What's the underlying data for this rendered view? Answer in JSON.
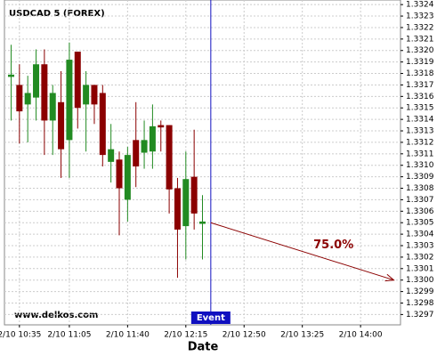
{
  "chart_data": {
    "type": "candlestick",
    "title": "USDCAD 5 (FOREX)",
    "x_label": "Date",
    "watermark": "www.delkos.com",
    "x": [
      "2/10 10:30",
      "2/10 10:35",
      "2/10 10:40",
      "2/10 10:45",
      "2/10 10:50",
      "2/10 10:55",
      "2/10 11:00",
      "2/10 11:05",
      "2/10 11:10",
      "2/10 11:15",
      "2/10 11:20",
      "2/10 11:25",
      "2/10 11:30",
      "2/10 11:35",
      "2/10 11:40",
      "2/10 11:45",
      "2/10 11:50",
      "2/10 11:55",
      "2/10 12:00",
      "2/10 12:05",
      "2/10 12:10",
      "2/10 12:15",
      "2/10 12:20",
      "2/10 12:25"
    ],
    "open": [
      1.33177,
      1.3317,
      1.33153,
      1.33159,
      1.33188,
      1.33139,
      1.33155,
      1.33122,
      1.33199,
      1.33153,
      1.3317,
      1.33163,
      1.33103,
      1.33105,
      1.3307,
      1.33122,
      1.33111,
      1.33112,
      1.33135,
      1.33135,
      1.3308,
      1.33047,
      1.3309,
      1.33049
    ],
    "high": [
      1.33205,
      1.33188,
      1.33178,
      1.33201,
      1.33201,
      1.3317,
      1.33182,
      1.33207,
      1.33199,
      1.33182,
      1.3317,
      1.3317,
      1.33136,
      1.33112,
      1.33116,
      1.33155,
      1.33139,
      1.33153,
      1.33139,
      1.33135,
      1.33089,
      1.33112,
      1.33131,
      1.33074
    ],
    "low": [
      1.33139,
      1.33119,
      1.3312,
      1.33139,
      1.33109,
      1.33109,
      1.33089,
      1.33089,
      1.33132,
      1.33112,
      1.33136,
      1.33099,
      1.33085,
      1.33039,
      1.33051,
      1.33081,
      1.33097,
      1.33097,
      1.33112,
      1.33058,
      1.33002,
      1.33018,
      1.33044,
      1.33018
    ],
    "close": [
      1.33179,
      1.33147,
      1.33163,
      1.33188,
      1.33139,
      1.33163,
      1.33114,
      1.33192,
      1.3315,
      1.3317,
      1.33153,
      1.33109,
      1.33114,
      1.3308,
      1.33109,
      1.33099,
      1.33122,
      1.33134,
      1.33133,
      1.33079,
      1.33044,
      1.33088,
      1.33058,
      1.33051
    ],
    "up_color": "#228b22",
    "down_color": "#8b0000",
    "xlim": [
      "2/10 10:26",
      "2/10 14:24"
    ],
    "xticks": [
      "2/10 10:35",
      "2/10 11:05",
      "2/10 11:40",
      "2/10 12:15",
      "2/10 12:50",
      "2/10 13:25",
      "2/10 14:00"
    ],
    "ylim": [
      1.32961,
      1.33244
    ],
    "yticks": [
      1.3297,
      1.3298,
      1.3299,
      {
        "value": 1.33,
        "label": "1.3300"
      },
      1.3301,
      1.3302,
      1.3303,
      1.3304,
      1.3305,
      1.3306,
      1.3307,
      1.3308,
      1.3309,
      {
        "value": 1.331,
        "label": "1.3310"
      },
      1.3311,
      1.3312,
      1.3313,
      1.3314,
      1.3315,
      1.3316,
      1.3317,
      1.3318,
      1.3319,
      {
        "value": 1.332,
        "label": "1.3320"
      },
      1.3321,
      1.3322,
      1.3323,
      1.3324
    ],
    "grid": true,
    "event": {
      "x": "2/10 12:30",
      "label": "Event",
      "color": "#1010c0"
    },
    "projection": {
      "x": [
        "2/10 12:30",
        "2/10 14:20"
      ],
      "y": [
        1.3305,
        1.33
      ],
      "label": "75.0%",
      "color": "#8b0000"
    }
  }
}
